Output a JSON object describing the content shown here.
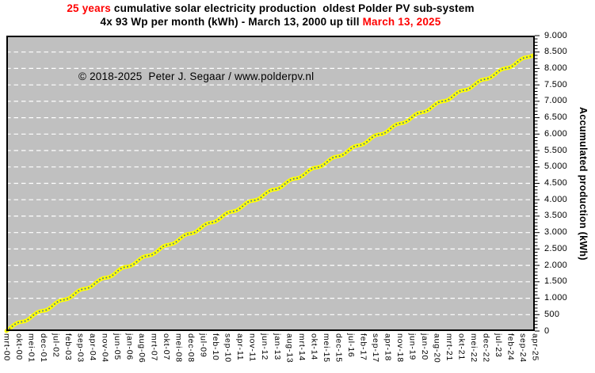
{
  "header": {
    "highlight_color": "#ff0000",
    "title_line1": {
      "highlight": "25 years",
      "rest": " cumulative solar electricity production  oldest Polder PV sub-system"
    },
    "title_line2": {
      "prefix": "4x 93 Wp per month (kWh) - March 13, 2000 up till ",
      "highlight": "March 13, 2025"
    }
  },
  "watermark": "© 2018-2025  Peter J. Segaar / www.polderpv.nl",
  "chart_data": {
    "type": "line",
    "title": "25 years cumulative solar electricity production oldest Polder PV sub-system",
    "subtitle": "4x 93 Wp per month (kWh) - March 13, 2000 up till March 13, 2025",
    "xlabel": "",
    "ylabel": "Accumulated production (kWh)",
    "plot_background": "#c0c0c0",
    "border_color": "#000000",
    "grid": {
      "horizontal": true,
      "style": "dashed",
      "color": "#ffffff"
    },
    "ylim": [
      0,
      9000
    ],
    "y_major_step": 500,
    "y_minor_step": 100,
    "y_tick_labels": [
      "0",
      "500",
      "1.000",
      "1.500",
      "2.000",
      "2.500",
      "3.000",
      "3.500",
      "4.000",
      "4.500",
      "5.000",
      "5.500",
      "6.000",
      "6.500",
      "7.000",
      "7.500",
      "8.000",
      "8.500",
      "9.000"
    ],
    "x_months_span": [
      0,
      301
    ],
    "x_tick_every_months": 7,
    "x_tick_labels": [
      "mrt-00",
      "okt-00",
      "mei-01",
      "dec-01",
      "jul-02",
      "feb-03",
      "sep-03",
      "apr-04",
      "nov-04",
      "jun-05",
      "jan-06",
      "aug-06",
      "mrt-07",
      "okt-07",
      "mei-08",
      "dec-08",
      "jul-09",
      "feb-10",
      "sep-10",
      "apr-11",
      "nov-11",
      "jun-12",
      "jan-13",
      "aug-13",
      "mrt-14",
      "okt-14",
      "mei-15",
      "dec-15",
      "jul-16",
      "feb-17",
      "sep-17",
      "apr-18",
      "nov-18",
      "jun-19",
      "jan-20",
      "aug-20",
      "mrt-21",
      "okt-21",
      "mei-22",
      "dec-22",
      "jul-23",
      "feb-24",
      "sep-24",
      "apr-25"
    ],
    "series": [
      {
        "name": "Accumulated production (kWh)",
        "line_color": "#ffff00",
        "marker_color": "#4a6fa8",
        "start_month_label": "mrt-00",
        "end_month_label": "mrt-25",
        "values_kwh": [
          0,
          37,
          81,
          127,
          172,
          212,
          242,
          262,
          274,
          282,
          292,
          309,
          336,
          373,
          417,
          463,
          508,
          548,
          578,
          598,
          610,
          618,
          628,
          645,
          672,
          709,
          753,
          799,
          844,
          884,
          914,
          934,
          946,
          954,
          964,
          981,
          1008,
          1045,
          1089,
          1135,
          1180,
          1220,
          1250,
          1270,
          1282,
          1290,
          1300,
          1317,
          1344,
          1381,
          1425,
          1471,
          1516,
          1556,
          1586,
          1606,
          1618,
          1626,
          1636,
          1653,
          1680,
          1717,
          1761,
          1807,
          1852,
          1892,
          1922,
          1942,
          1954,
          1962,
          1972,
          1989,
          2016,
          2053,
          2097,
          2143,
          2188,
          2228,
          2258,
          2278,
          2290,
          2298,
          2308,
          2325,
          2352,
          2389,
          2433,
          2479,
          2524,
          2564,
          2594,
          2614,
          2626,
          2634,
          2644,
          2661,
          2688,
          2725,
          2769,
          2815,
          2860,
          2900,
          2930,
          2950,
          2962,
          2970,
          2980,
          2997,
          3024,
          3061,
          3105,
          3151,
          3196,
          3236,
          3266,
          3286,
          3298,
          3306,
          3316,
          3333,
          3360,
          3397,
          3441,
          3487,
          3532,
          3572,
          3602,
          3622,
          3634,
          3642,
          3652,
          3669,
          3696,
          3733,
          3777,
          3823,
          3868,
          3908,
          3938,
          3958,
          3970,
          3978,
          3988,
          4005,
          4032,
          4069,
          4113,
          4159,
          4204,
          4244,
          4274,
          4294,
          4306,
          4314,
          4324,
          4341,
          4368,
          4405,
          4449,
          4495,
          4540,
          4580,
          4610,
          4630,
          4642,
          4650,
          4660,
          4677,
          4704,
          4741,
          4785,
          4831,
          4876,
          4916,
          4946,
          4966,
          4978,
          4986,
          4996,
          5013,
          5040,
          5077,
          5121,
          5167,
          5212,
          5252,
          5282,
          5302,
          5314,
          5322,
          5332,
          5349,
          5376,
          5413,
          5457,
          5503,
          5548,
          5588,
          5618,
          5638,
          5650,
          5658,
          5668,
          5685,
          5712,
          5749,
          5793,
          5839,
          5884,
          5924,
          5954,
          5974,
          5986,
          5994,
          6004,
          6021,
          6048,
          6085,
          6129,
          6175,
          6220,
          6260,
          6290,
          6310,
          6322,
          6330,
          6340,
          6357,
          6384,
          6421,
          6465,
          6511,
          6556,
          6596,
          6626,
          6646,
          6658,
          6666,
          6676,
          6693,
          6720,
          6757,
          6801,
          6847,
          6892,
          6932,
          6962,
          6982,
          6994,
          7002,
          7012,
          7029,
          7056,
          7093,
          7137,
          7183,
          7228,
          7268,
          7298,
          7318,
          7330,
          7338,
          7348,
          7365,
          7392,
          7429,
          7473,
          7519,
          7564,
          7604,
          7634,
          7654,
          7666,
          7674,
          7684,
          7701,
          7728,
          7765,
          7809,
          7855,
          7900,
          7940,
          7970,
          7990,
          8002,
          8010,
          8020,
          8037,
          8064,
          8101,
          8145,
          8191,
          8236,
          8276,
          8306,
          8326,
          8338,
          8346,
          8356,
          8373,
          8400
        ]
      }
    ]
  }
}
